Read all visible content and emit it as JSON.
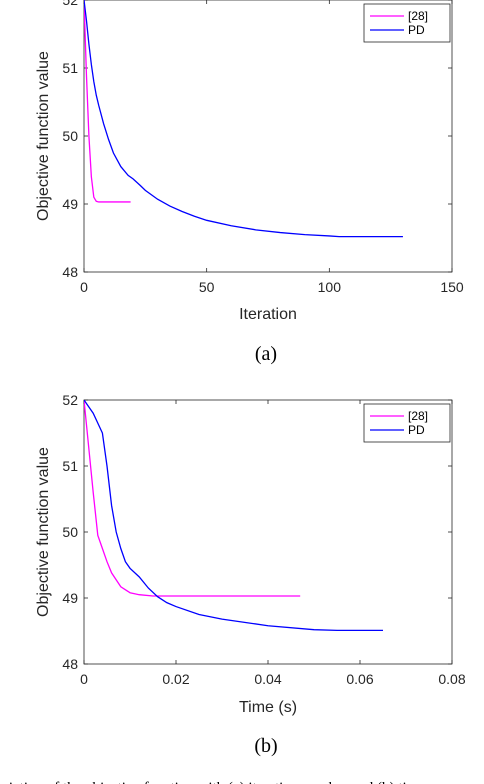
{
  "chart_data": [
    {
      "type": "line",
      "title": "",
      "xlabel": "Iteration",
      "ylabel": "Objective function value",
      "xlim": [
        0,
        150
      ],
      "ylim": [
        48,
        52
      ],
      "xticks": [
        0,
        50,
        100,
        150
      ],
      "yticks": [
        48,
        49,
        50,
        51,
        52
      ],
      "legend_position": "top-right",
      "grid": false,
      "sublabel": "(a)",
      "series": [
        {
          "name": "[28]",
          "color": "#ff00ff",
          "x": [
            0,
            1,
            2,
            3,
            4,
            5,
            6,
            8,
            10,
            15,
            19
          ],
          "y": [
            52.0,
            50.9,
            50.0,
            49.4,
            49.1,
            49.04,
            49.03,
            49.03,
            49.03,
            49.03,
            49.03
          ]
        },
        {
          "name": "PD",
          "color": "#0000ff",
          "x": [
            0,
            1,
            2,
            3,
            4,
            5,
            6,
            8,
            10,
            12,
            15,
            18,
            20,
            23,
            25,
            30,
            35,
            40,
            45,
            50,
            60,
            70,
            80,
            90,
            100,
            104,
            110,
            120,
            130
          ],
          "y": [
            52.0,
            51.7,
            51.35,
            51.05,
            50.8,
            50.6,
            50.45,
            50.18,
            49.95,
            49.75,
            49.55,
            49.42,
            49.37,
            49.27,
            49.2,
            49.07,
            48.97,
            48.89,
            48.82,
            48.76,
            48.68,
            48.62,
            48.58,
            48.55,
            48.53,
            48.52,
            48.52,
            48.52,
            48.52
          ]
        }
      ]
    },
    {
      "type": "line",
      "title": "",
      "xlabel": "Time (s)",
      "ylabel": "Objective function value",
      "xlim": [
        0,
        0.08
      ],
      "ylim": [
        48,
        52
      ],
      "xticks": [
        0,
        0.02,
        0.04,
        0.06,
        0.08
      ],
      "yticks": [
        48,
        49,
        50,
        51,
        52
      ],
      "legend_position": "top-right",
      "grid": false,
      "sublabel": "(b)",
      "series": [
        {
          "name": "[28]",
          "color": "#ff00ff",
          "x": [
            0,
            0.001,
            0.002,
            0.003,
            0.004,
            0.005,
            0.006,
            0.008,
            0.01,
            0.012,
            0.015,
            0.02,
            0.03,
            0.047
          ],
          "y": [
            52.0,
            51.3,
            50.6,
            49.95,
            49.75,
            49.55,
            49.38,
            49.17,
            49.08,
            49.05,
            49.03,
            49.03,
            49.03,
            49.03
          ]
        },
        {
          "name": "PD",
          "color": "#0000ff",
          "x": [
            0,
            0.002,
            0.004,
            0.005,
            0.006,
            0.007,
            0.008,
            0.009,
            0.01,
            0.012,
            0.014,
            0.016,
            0.018,
            0.02,
            0.025,
            0.03,
            0.04,
            0.05,
            0.055,
            0.06,
            0.065
          ],
          "y": [
            52.0,
            51.8,
            51.5,
            51.0,
            50.4,
            50.0,
            49.75,
            49.55,
            49.45,
            49.32,
            49.15,
            49.02,
            48.93,
            48.87,
            48.75,
            48.68,
            48.58,
            48.52,
            48.51,
            48.51,
            48.51
          ]
        }
      ]
    }
  ],
  "caption": "Variation of the objective function with (a) iteration number and (b) time."
}
